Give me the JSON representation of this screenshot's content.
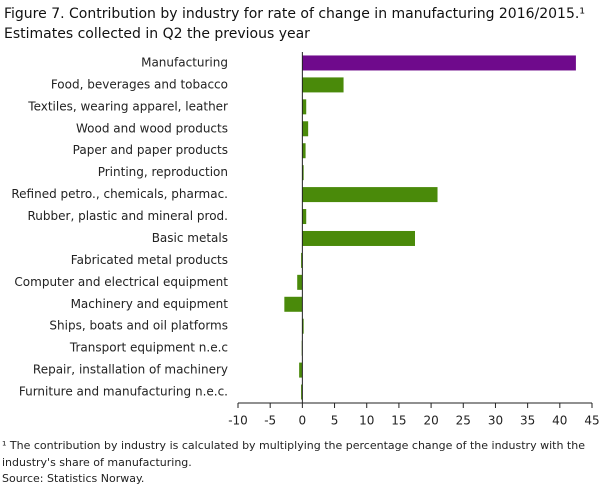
{
  "chart_data": {
    "type": "hbar",
    "title": [
      "Figure 7. Contribution by industry for rate of change in manufacturing  2016/2015.¹",
      "Estimates collected in Q2 the previous year"
    ],
    "categories": [
      "Manufacturing",
      "Food, beverages and tobacco",
      "Textiles, wearing apparel, leather",
      "Wood and wood products",
      "Paper and paper products",
      "Printing, reproduction",
      "Refined petro., chemicals, pharmac.",
      "Rubber, plastic and mineral prod.",
      "Basic metals",
      "Fabricated metal products",
      "Computer and electrical equipment",
      "Machinery and equipment",
      "Ships, boats and oil platforms",
      "Transport equipment n.e.c",
      "Repair, installation of machinery",
      "Furniture and manufacturing n.e.c."
    ],
    "values": [
      42.5,
      6.4,
      0.6,
      0.9,
      0.5,
      0.2,
      21.0,
      0.6,
      17.5,
      -0.2,
      -0.8,
      -2.8,
      0.2,
      -0.1,
      -0.5,
      -0.2
    ],
    "colors": [
      "#6f0a8c",
      "#4a8a0a",
      "#4a8a0a",
      "#4a8a0a",
      "#4a8a0a",
      "#4a8a0a",
      "#4a8a0a",
      "#4a8a0a",
      "#4a8a0a",
      "#4a8a0a",
      "#4a8a0a",
      "#4a8a0a",
      "#4a8a0a",
      "#4a8a0a",
      "#4a8a0a",
      "#4a8a0a"
    ],
    "xlim": [
      -10,
      45
    ],
    "xticks": [
      -10,
      -5,
      0,
      5,
      10,
      15,
      20,
      25,
      30,
      35,
      40,
      45
    ],
    "footnotes": [
      "¹ The contribution by industry is calculated by multiplying the percentage change of the industry with the",
      "industry's share of manufacturing.",
      "Source: Statistics Norway."
    ]
  }
}
